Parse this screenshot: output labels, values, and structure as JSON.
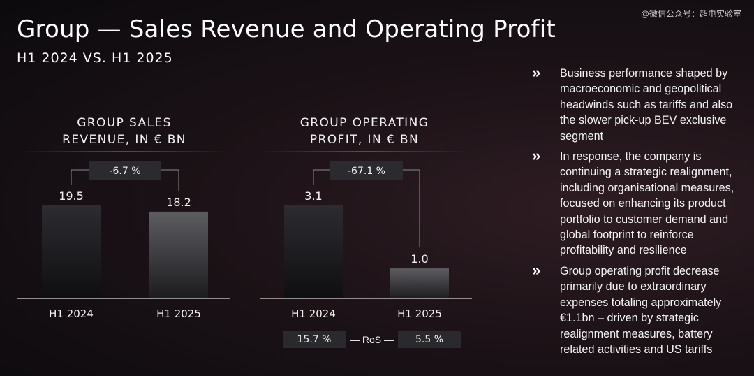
{
  "watermark": "@微信公众号：超电实验室",
  "title": "Group — Sales Revenue and Operating Profit",
  "subtitle": "H1 2024 VS. H1 2025",
  "chart_data": [
    {
      "type": "bar",
      "title": "GROUP SALES REVENUE, IN € BN",
      "title_lines": [
        "GROUP SALES",
        "REVENUE, IN € BN"
      ],
      "categories": [
        "H1 2024",
        "H1 2025"
      ],
      "values": [
        19.5,
        18.2
      ],
      "value_labels": [
        "19.5",
        "18.2"
      ],
      "change_label": "-6.7 %",
      "ylim": [
        0,
        19.5
      ],
      "grid": false
    },
    {
      "type": "bar",
      "title": "GROUP OPERATING PROFIT, IN € BN",
      "title_lines": [
        "GROUP OPERATING",
        "PROFIT, IN € BN"
      ],
      "categories": [
        "H1 2024",
        "H1 2025"
      ],
      "values": [
        3.1,
        1.0
      ],
      "value_labels": [
        "3.1",
        "1.0"
      ],
      "change_label": "-67.1 %",
      "ylim": [
        0,
        3.1
      ],
      "grid": false
    }
  ],
  "ros": {
    "label": "RoS",
    "values": [
      "15.7 %",
      "5.5 %"
    ]
  },
  "bullets": [
    {
      "icon": "double-chevron-right-icon",
      "text": "Business performance shaped by macroeconomic and geopolitical headwinds such as tariffs and also the slower pick-up BEV exclusive segment"
    },
    {
      "icon": "double-chevron-right-icon",
      "text": "In response, the company is continuing a strategic realignment, including organisational measures, focused on enhancing its product portfolio to customer demand and global footprint to reinforce profitability and resilience"
    },
    {
      "icon": "double-chevron-right-icon",
      "text": "Group operating profit decrease primarily due to extraordinary expenses totaling approximately €1.1bn – driven by strategic realignment measures, battery related activities and US tariffs"
    }
  ]
}
